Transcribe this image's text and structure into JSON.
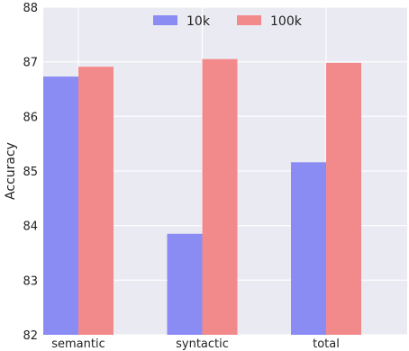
{
  "chart_data": {
    "type": "bar",
    "categories": [
      "semantic",
      "syntactic",
      "total"
    ],
    "series": [
      {
        "name": "10k",
        "values": [
          86.73,
          83.85,
          85.16
        ],
        "color": "#8a8cf4"
      },
      {
        "name": "100k",
        "values": [
          86.91,
          87.05,
          86.98
        ],
        "color": "#f28a8c"
      }
    ],
    "xlabel": "",
    "ylabel": "Accuracy",
    "ylim": [
      82,
      88
    ],
    "yticks": [
      82,
      83,
      84,
      85,
      86,
      87,
      88
    ],
    "grid": true,
    "legend": "top-center",
    "background": "#eaeaf2"
  }
}
